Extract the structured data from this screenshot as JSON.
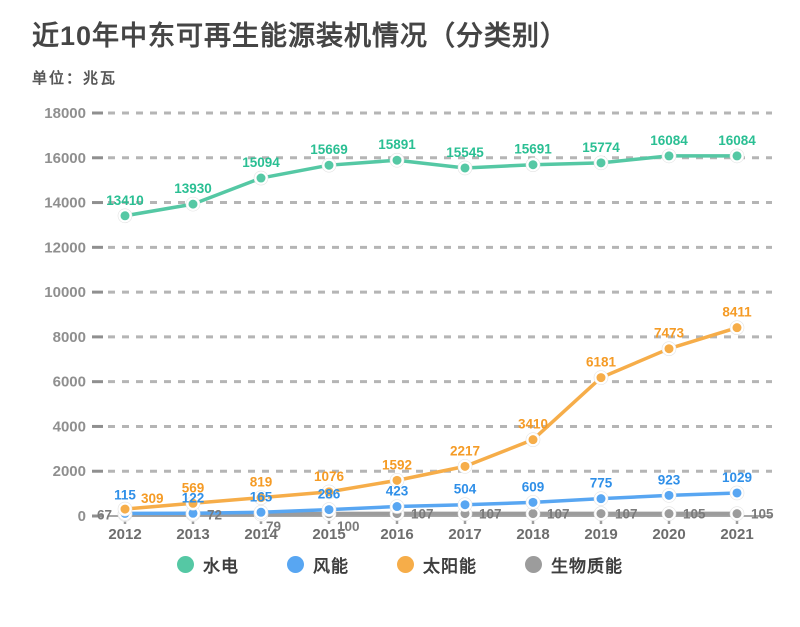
{
  "title": "近10年中东可再生能源装机情况（分类别）",
  "subtitle": "单位：兆瓦",
  "chart_data": {
    "type": "line",
    "title": "近10年中东可再生能源装机情况（分类别）",
    "unit_label": "单位：兆瓦",
    "categories": [
      "2012",
      "2013",
      "2014",
      "2015",
      "2016",
      "2017",
      "2018",
      "2019",
      "2020",
      "2021"
    ],
    "series": [
      {
        "id": "hydro",
        "name": "水电",
        "color": "#55c8a4",
        "label_color": "#2abf93",
        "values": [
          13410,
          13930,
          15094,
          15669,
          15891,
          15545,
          15691,
          15774,
          16084,
          16084
        ]
      },
      {
        "id": "wind",
        "name": "风能",
        "color": "#58a6f2",
        "label_color": "#2f8fe8",
        "values": [
          115,
          122,
          165,
          286,
          423,
          504,
          609,
          775,
          923,
          1029
        ]
      },
      {
        "id": "solar",
        "name": "太阳能",
        "color": "#f6ad49",
        "label_color": "#f59b25",
        "values": [
          309,
          569,
          819,
          1076,
          1592,
          2217,
          3410,
          6181,
          7473,
          8411
        ]
      },
      {
        "id": "biomass",
        "name": "生物质能",
        "color": "#9c9c9c",
        "label_color": "#7b7b7b",
        "values": [
          67,
          72,
          79,
          100,
          107,
          107,
          107,
          107,
          105,
          105
        ]
      }
    ],
    "ylim": [
      0,
      18000
    ],
    "ytick_step": 2000,
    "y_axis_labels": [
      "0",
      "2000",
      "4000",
      "6000",
      "8000",
      "10000",
      "12000",
      "14000",
      "16000",
      "18000"
    ],
    "grid": "horizontal-dashed",
    "grid_color": "#b5b5b5",
    "axis_text_color": "#8f8f8f",
    "x_axis_text_color": "#6d6d6d",
    "legend_position": "bottom"
  }
}
